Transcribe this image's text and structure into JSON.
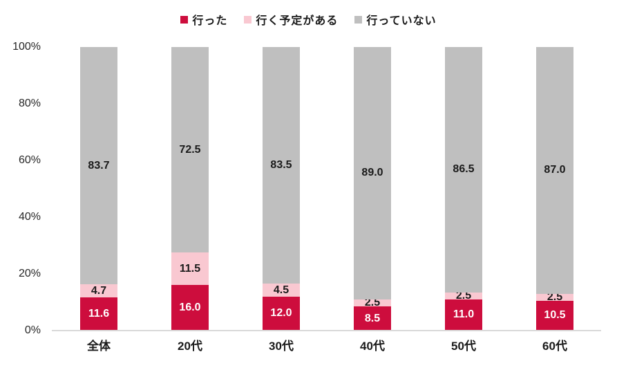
{
  "colors": {
    "went": "#CD0D3D",
    "plan": "#F9C8D1",
    "not_gone": "#BFBFBF",
    "axis_line": "#D9D9D9",
    "text": "#1A1A1A",
    "tick_text": "#262626",
    "label_on_red": "#FFFFFF"
  },
  "chart_data": {
    "type": "bar",
    "subtype": "stacked-percent",
    "title": "",
    "xlabel": "",
    "ylabel": "",
    "ylim": [
      0,
      100
    ],
    "grid": false,
    "legend_position": "top",
    "categories": [
      "全体",
      "20代",
      "30代",
      "40代",
      "50代",
      "60代"
    ],
    "y_ticks": [
      "0%",
      "20%",
      "40%",
      "60%",
      "80%",
      "100%"
    ],
    "series": [
      {
        "name": "行った",
        "color_key": "went",
        "values": [
          11.6,
          16.0,
          12.0,
          8.5,
          11.0,
          10.5
        ]
      },
      {
        "name": "行く予定がある",
        "color_key": "plan",
        "values": [
          4.7,
          11.5,
          4.5,
          2.5,
          2.5,
          2.5
        ]
      },
      {
        "name": "行っていない",
        "color_key": "not_gone",
        "values": [
          83.7,
          72.5,
          83.5,
          89.0,
          86.5,
          87.0
        ]
      }
    ]
  }
}
